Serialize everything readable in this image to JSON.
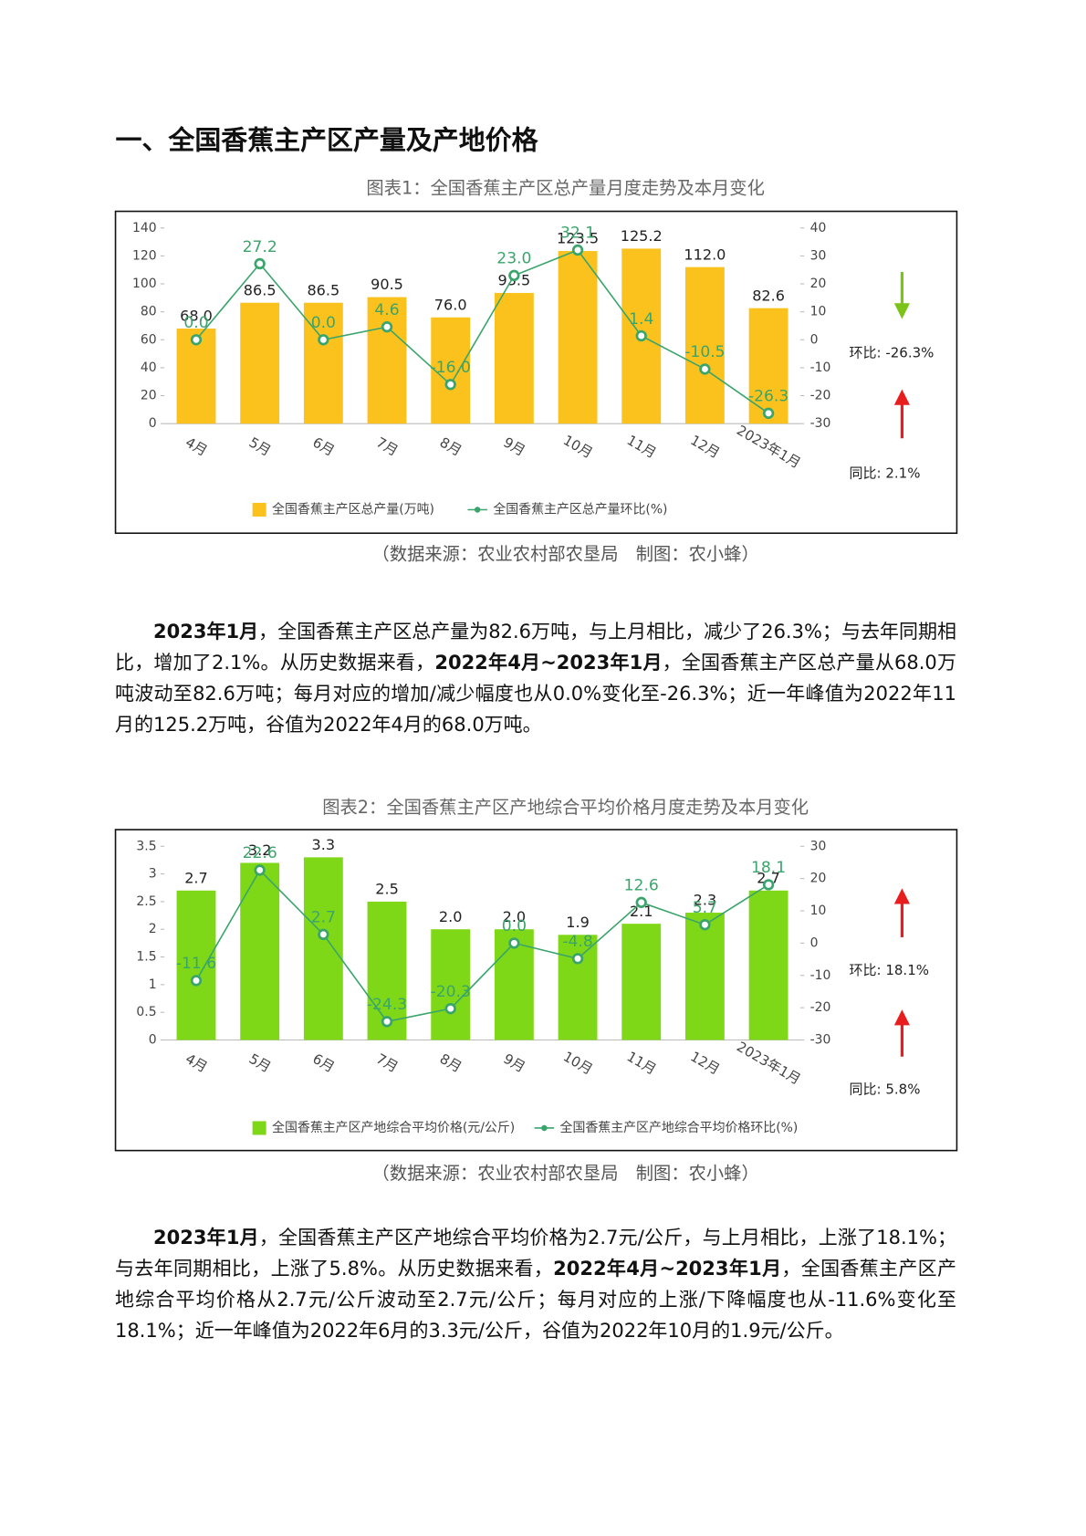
{
  "document": {
    "heading": "一、全国香蕉主产区产量及产地价格",
    "paragraphs": [
      [
        {
          "text": "2023年1月",
          "bold": true
        },
        {
          "text": "，全国香蕉主产区总产量为82.6万吨，与上月相比，减少了26.3%；与去年同期相比，增加了2.1%。从历史数据来看，",
          "bold": false
        },
        {
          "text": "2022年4月~2023年1月",
          "bold": true
        },
        {
          "text": "，全国香蕉主产区总产量从68.0万吨波动至82.6万吨；每月对应的增加/减少幅度也从0.0%变化至-26.3%；近一年峰值为2022年11月的125.2万吨，谷值为2022年4月的68.0万吨。",
          "bold": false
        }
      ],
      [
        {
          "text": "2023年1月",
          "bold": true
        },
        {
          "text": "，全国香蕉主产区产地综合平均价格为2.7元/公斤，与上月相比，上涨了18.1%；与去年同期相比，上涨了5.8%。从历史数据来看，",
          "bold": false
        },
        {
          "text": "2022年4月~2023年1月",
          "bold": true
        },
        {
          "text": "，全国香蕉主产区产地综合平均价格从2.7元/公斤波动至2.7元/公斤；每月对应的上涨/下降幅度也从-11.6%变化至18.1%；近一年峰值为2022年6月的3.3元/公斤，谷值为2022年10月的1.9元/公斤。",
          "bold": false
        }
      ]
    ]
  },
  "chart_data": [
    {
      "type": "bar-line",
      "title": "图表1：全国香蕉主产区总产量月度走势及本月变化",
      "source": "（数据来源：农业农村部农垦局　制图：农小蜂）",
      "categories": [
        "4月",
        "5月",
        "6月",
        "7月",
        "8月",
        "9月",
        "10月",
        "11月",
        "12月",
        "2023年1月"
      ],
      "series": [
        {
          "name": "全国香蕉主产区总产量(万吨)",
          "color": "#fbc21e",
          "values": [
            68.0,
            86.5,
            86.5,
            90.5,
            76.0,
            93.5,
            123.5,
            125.2,
            112.0,
            82.6
          ],
          "value_labels": [
            "68.0",
            "86.5",
            "86.5",
            "90.5",
            "76.0",
            "93.5",
            "123.5",
            "125.2",
            "112.0",
            "82.6"
          ]
        },
        {
          "name": "全国香蕉主产区总产量环比(%)",
          "color": "#3aa56b",
          "axis": "y2",
          "values": [
            0.0,
            27.2,
            0.0,
            4.6,
            -16.0,
            23.0,
            32.1,
            1.4,
            -10.5,
            -26.3
          ],
          "value_labels": [
            "0.0",
            "27.2",
            "0.0",
            "4.6",
            "-16.0",
            "23.0",
            "32.1",
            "1.4",
            "-10.5",
            "-26.3"
          ]
        }
      ],
      "ylim": [
        0,
        140
      ],
      "yticks": [
        0,
        20,
        40,
        60,
        80,
        100,
        120,
        140
      ],
      "y2lim": [
        -30,
        40
      ],
      "y2ticks": [
        -30,
        -20,
        -10,
        0,
        10,
        20,
        30,
        40
      ],
      "grid": false,
      "annotations": [
        "环比:  -26.3%",
        "同比:  2.1%"
      ]
    },
    {
      "type": "bar-line",
      "title": "图表2：全国香蕉主产区产地综合平均价格月度走势及本月变化",
      "source": "（数据来源：农业农村部农垦局　制图：农小蜂）",
      "categories": [
        "4月",
        "5月",
        "6月",
        "7月",
        "8月",
        "9月",
        "10月",
        "11月",
        "12月",
        "2023年1月"
      ],
      "series": [
        {
          "name": "全国香蕉主产区产地综合平均价格(元/公斤)",
          "color": "#7fd817",
          "values": [
            2.7,
            3.2,
            3.3,
            2.5,
            2.0,
            2.0,
            1.9,
            2.1,
            2.3,
            2.7
          ],
          "value_labels": [
            "2.7",
            "3.2",
            "3.3",
            "2.5",
            "2.0",
            "2.0",
            "1.9",
            "2.1",
            "2.3",
            "2.7"
          ]
        },
        {
          "name": "全国香蕉主产区产地综合平均价格环比(%)",
          "color": "#3aa56b",
          "axis": "y2",
          "values": [
            -11.6,
            22.6,
            2.7,
            -24.3,
            -20.3,
            0.0,
            -4.8,
            12.6,
            5.7,
            18.1
          ],
          "value_labels": [
            "-11.6",
            "22.6",
            "2.7",
            "-24.3",
            "-20.3",
            "0.0",
            "-4.8",
            "12.6",
            "5.7",
            "18.1"
          ]
        }
      ],
      "ylim": [
        0,
        3.5
      ],
      "yticks": [
        0,
        0.5,
        1,
        1.5,
        2,
        2.5,
        3,
        3.5
      ],
      "y2lim": [
        -30,
        30
      ],
      "y2ticks": [
        -30,
        -20,
        -10,
        0,
        10,
        20,
        30
      ],
      "grid": false,
      "annotations": [
        "环比:  18.1%",
        "同比:  5.8%"
      ]
    }
  ]
}
